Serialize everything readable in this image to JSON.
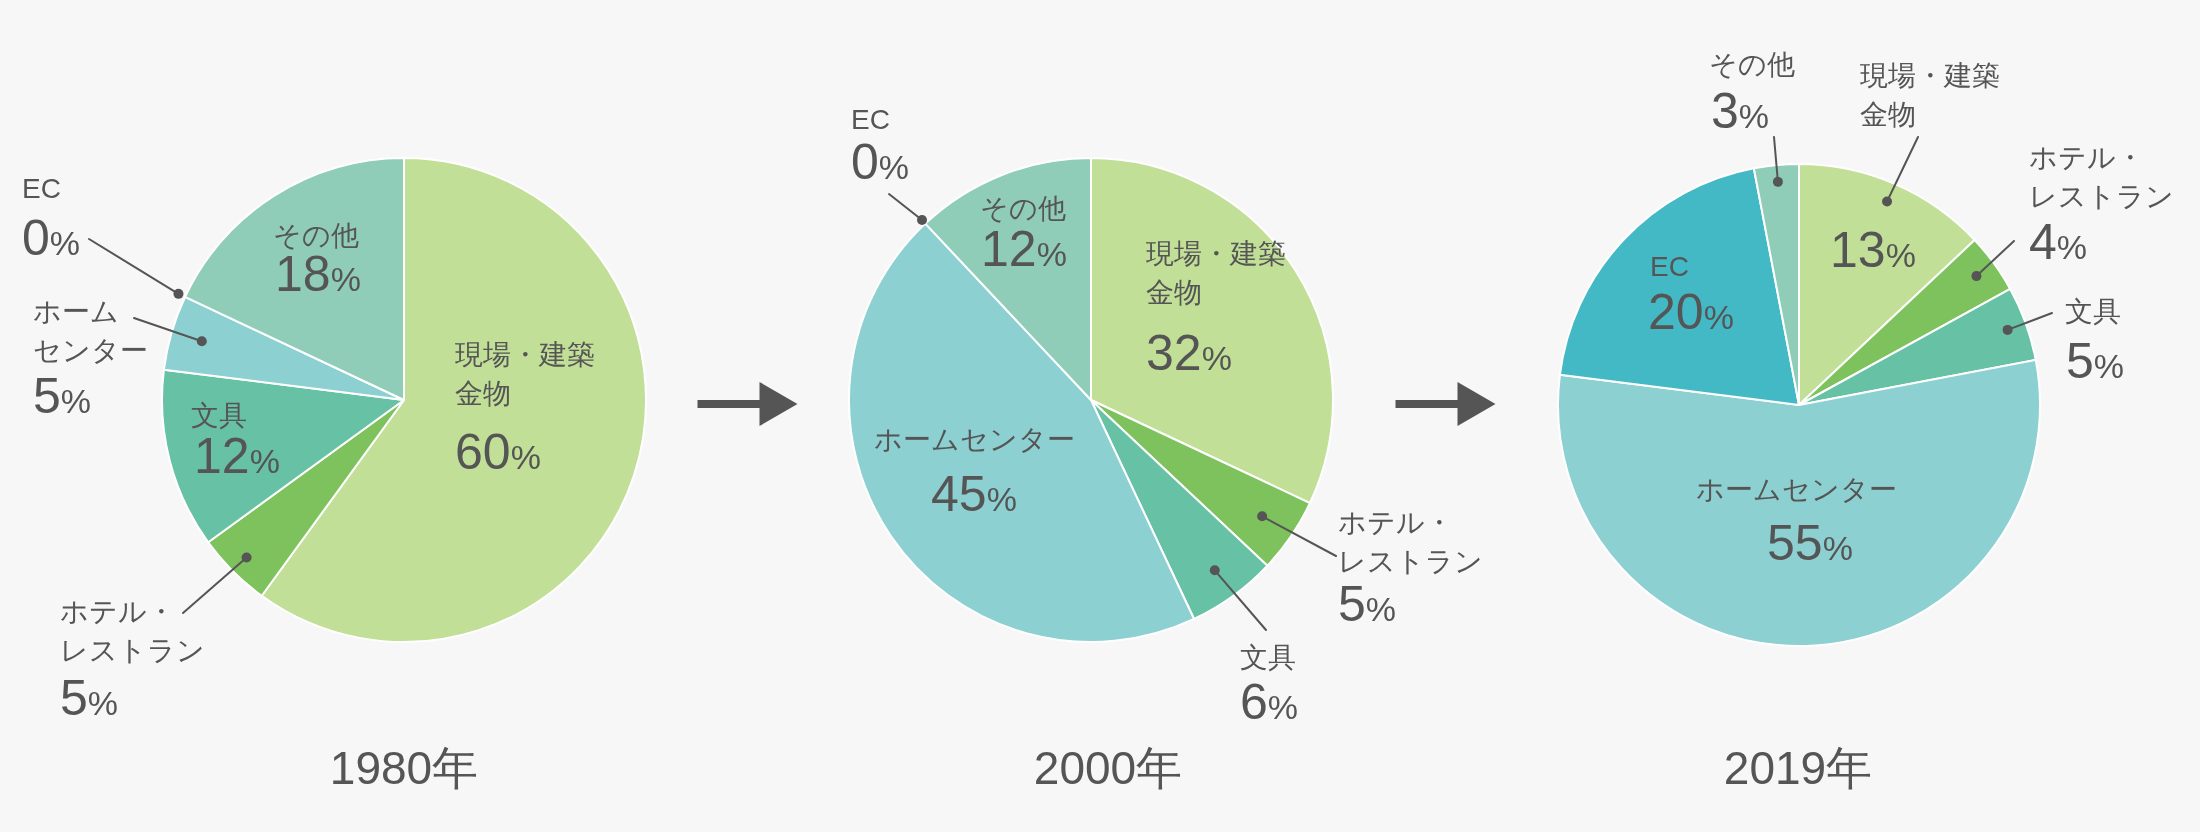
{
  "chart_data": [
    {
      "type": "pie",
      "title": "1980年",
      "categories": [
        "現場・建築金物",
        "ホテル・レストラン",
        "文具",
        "ホームセンター",
        "EC",
        "その他"
      ],
      "values": [
        60,
        5,
        12,
        5,
        0,
        18
      ],
      "value_labels": [
        "60%",
        "5%",
        "12%",
        "5%",
        "0%",
        "18%"
      ],
      "colors": [
        "#c2df98",
        "#7ec25e",
        "#66c1a5",
        "#8dd0d2",
        null,
        "#8fcdb9"
      ]
    },
    {
      "type": "pie",
      "title": "2000年",
      "categories": [
        "現場・建築金物",
        "ホテル・レストラン",
        "文具",
        "ホームセンター",
        "EC",
        "その他"
      ],
      "values": [
        32,
        5,
        6,
        45,
        0,
        12
      ],
      "value_labels": [
        "32%",
        "5%",
        "6%",
        "45%",
        "0%",
        "12%"
      ],
      "colors": [
        "#c2df98",
        "#7ec25e",
        "#66c1a5",
        "#8dd0d2",
        null,
        "#8fcdb9"
      ]
    },
    {
      "type": "pie",
      "title": "2019年",
      "categories": [
        "現場・建築金物",
        "ホテル・レストラン",
        "文具",
        "ホームセンター",
        "EC",
        "その他"
      ],
      "values": [
        13,
        4,
        5,
        55,
        20,
        3
      ],
      "value_labels": [
        "13%",
        "4%",
        "5%",
        "55%",
        "20%",
        "3%"
      ],
      "colors": [
        "#c2df98",
        "#7ec25e",
        "#66c1a5",
        "#8dd0d2",
        "#43b9c6",
        "#8fcdb9"
      ]
    }
  ]
}
